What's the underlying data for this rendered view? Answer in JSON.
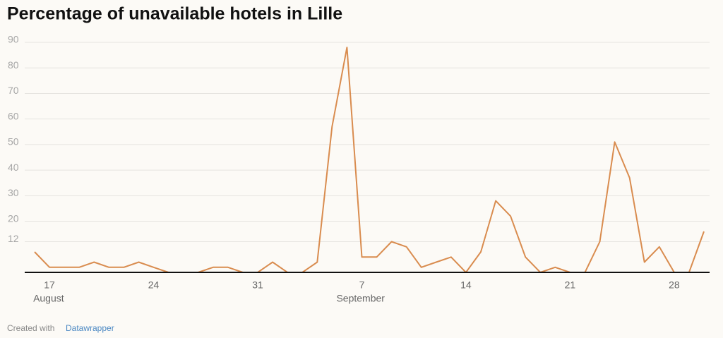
{
  "chart_data": {
    "type": "line",
    "title": "Percentage of unavailable hotels in Lille",
    "categories": [
      null,
      "17",
      null,
      null,
      null,
      null,
      null,
      null,
      "24",
      null,
      null,
      null,
      null,
      null,
      null,
      "31",
      null,
      null,
      null,
      null,
      null,
      null,
      "7",
      null,
      null,
      null,
      null,
      null,
      null,
      "14",
      null,
      null,
      null,
      null,
      null,
      null,
      "21",
      null,
      null,
      null,
      null,
      null,
      null,
      "28",
      null,
      null
    ],
    "month_labels": [
      {
        "text": "August",
        "category": 1
      },
      {
        "text": "September",
        "category": 22
      }
    ],
    "series": [
      {
        "name": "Unavailable hotels",
        "color": "#d98c4f",
        "values": [
          8,
          2,
          2,
          2,
          4,
          2,
          2,
          4,
          2,
          0,
          0,
          0,
          2,
          2,
          0,
          0,
          4,
          0,
          0,
          4,
          57,
          88,
          6,
          6,
          12,
          10,
          2,
          4,
          6,
          0,
          8,
          28,
          22,
          6,
          0,
          2,
          0,
          0,
          12,
          51,
          37,
          4,
          10,
          0,
          0,
          16
        ]
      }
    ],
    "ylim": [
      0,
      90
    ],
    "yticks": [
      12,
      20,
      30,
      40,
      50,
      60,
      70,
      80,
      90
    ],
    "grid": true,
    "footer": {
      "prefix": "Created with",
      "link": "Datawrapper"
    }
  }
}
